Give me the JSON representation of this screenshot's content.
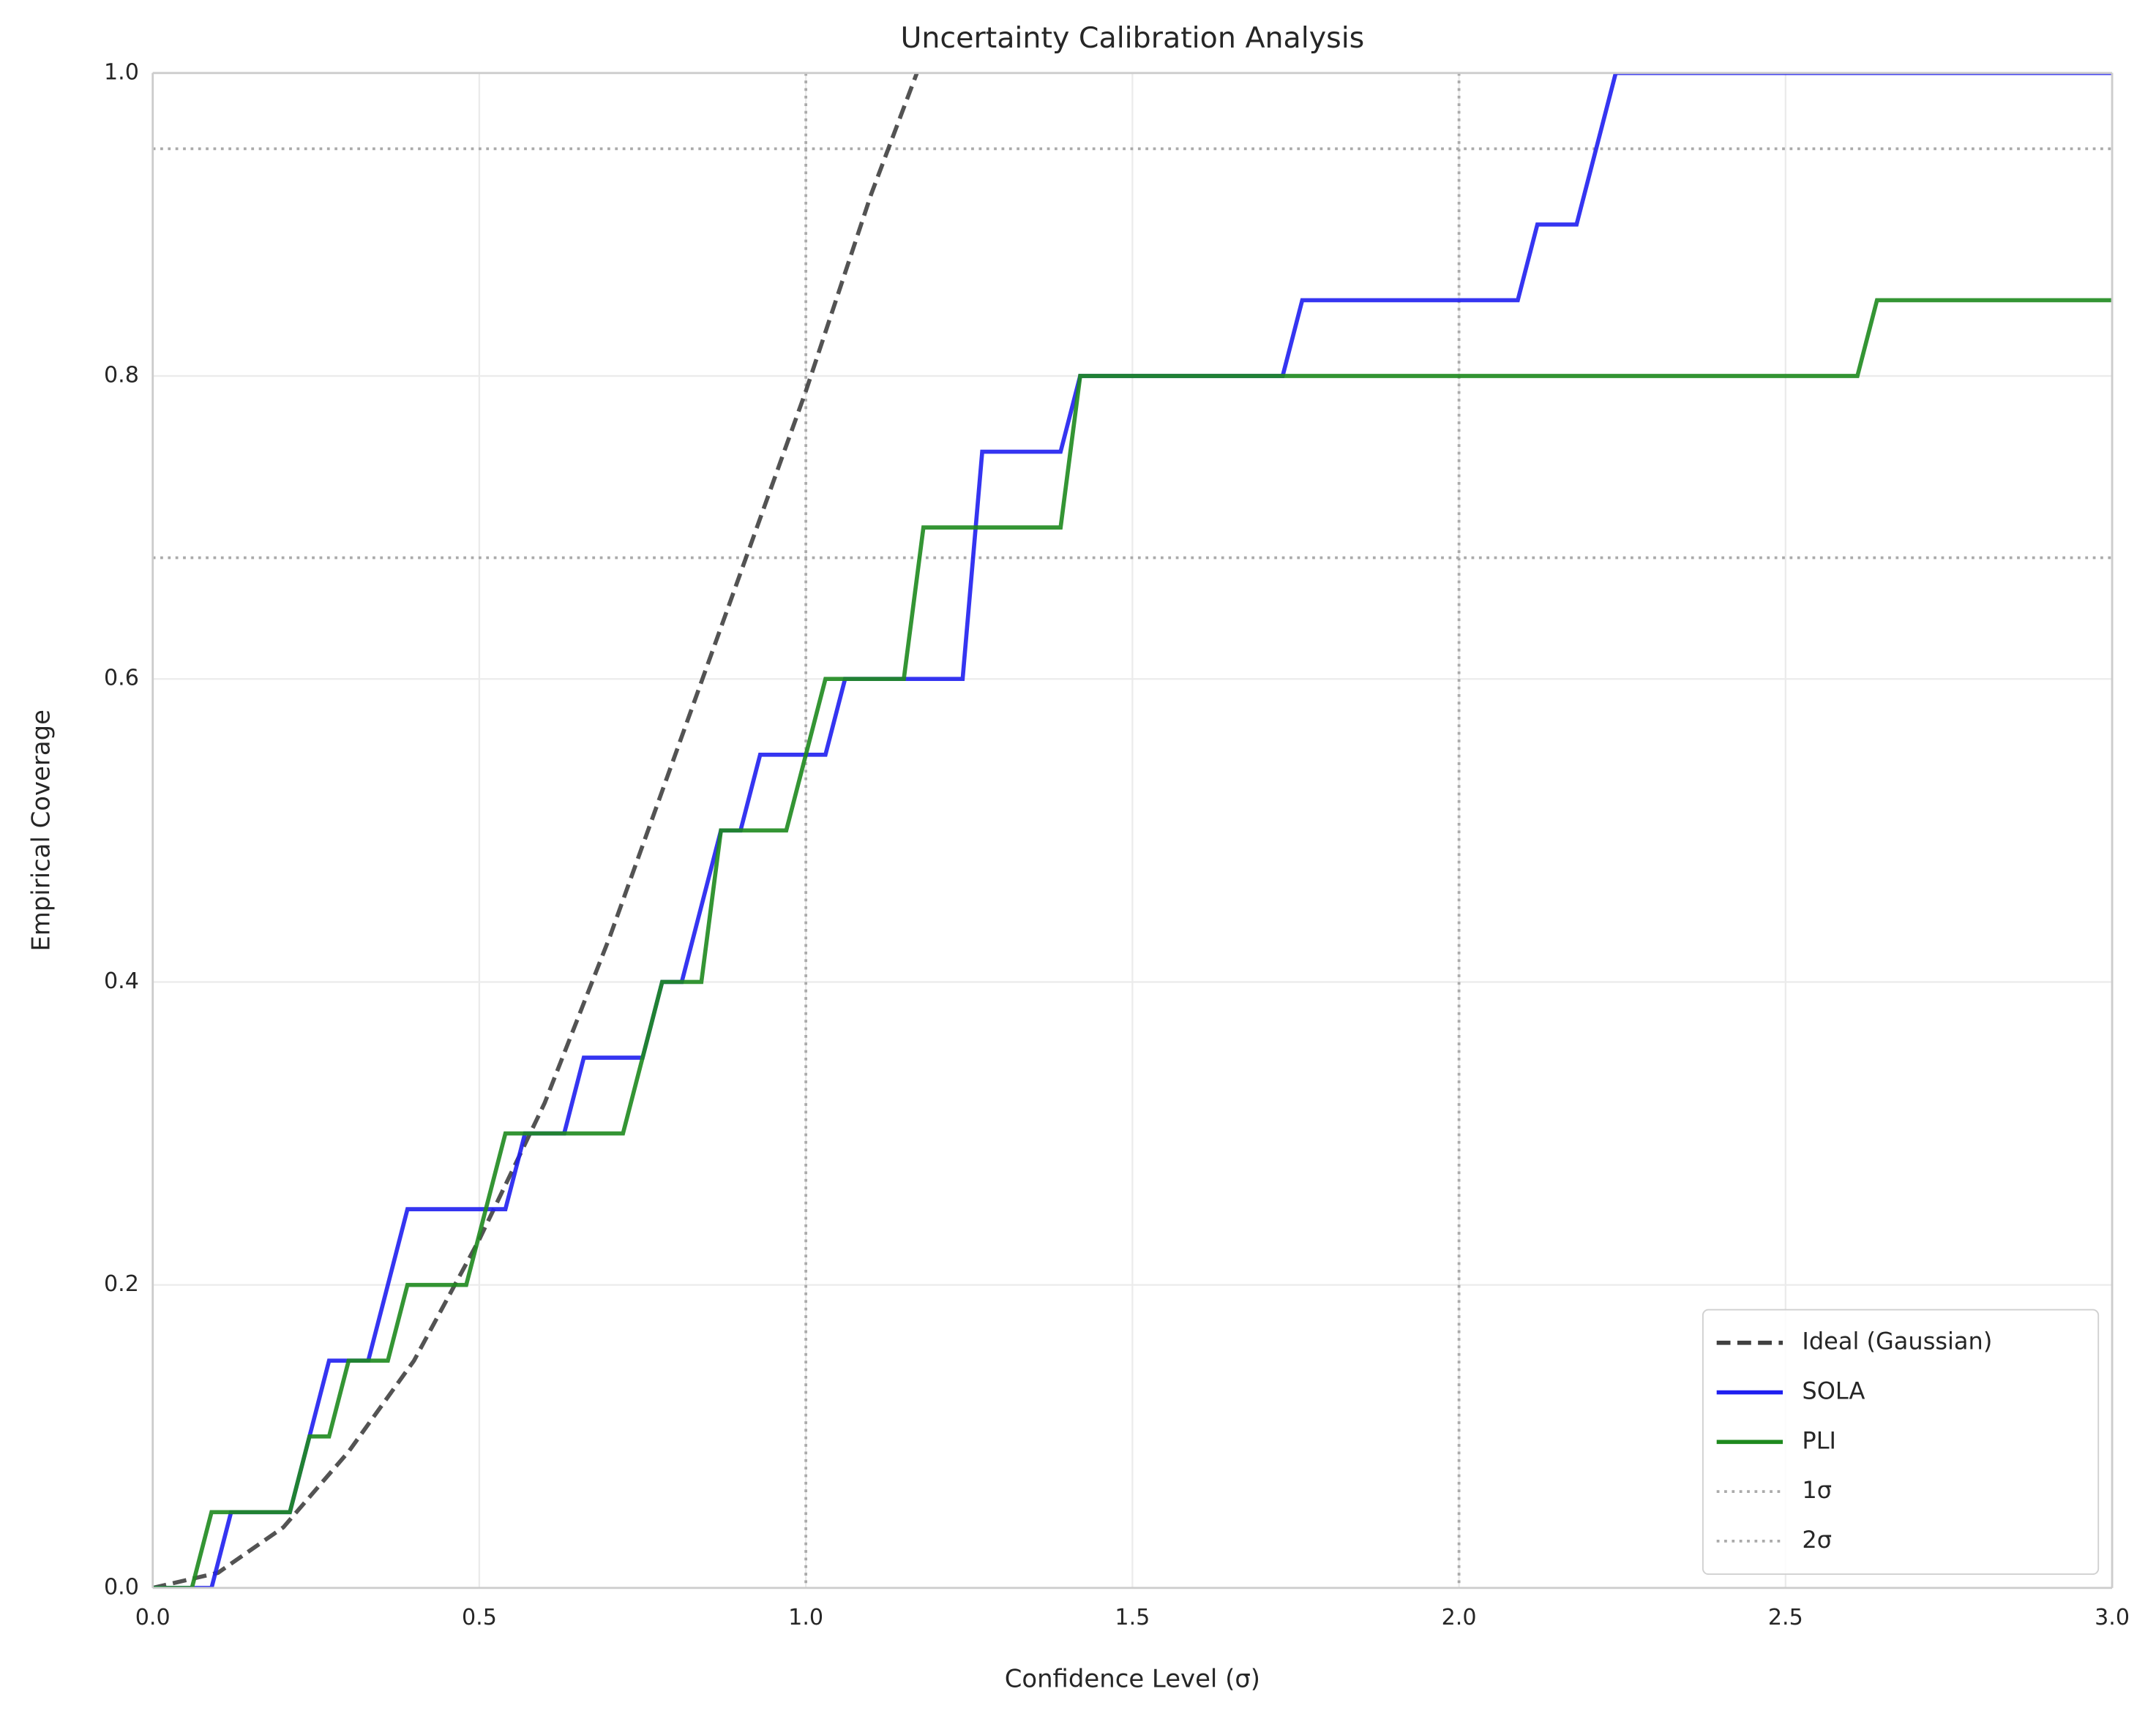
{
  "chart_data": {
    "type": "line",
    "title": "Uncertainty Calibration Analysis",
    "x_label": "Confidence Level (σ)",
    "y_label": "Empirical Coverage",
    "xlim": [
      0,
      3
    ],
    "ylim": [
      0,
      1
    ],
    "xticks": [
      {
        "value": 0,
        "label": "0.0"
      },
      0.5,
      {
        "value": 1,
        "label": "1.0"
      },
      1.5,
      {
        "value": 2,
        "label": "2.0"
      },
      2.5,
      {
        "value": 3,
        "label": "3.0"
      }
    ],
    "yticks": [
      {
        "value": 0,
        "label": "0.0"
      },
      0.2,
      0.4,
      0.6,
      0.8,
      {
        "value": 1,
        "label": "1.0"
      }
    ],
    "grid": true,
    "legend": "lower right",
    "series": [
      {
        "name": "Ideal (Gaussian)",
        "color": "#404040",
        "style": "dashed",
        "x": [
          0,
          0.1,
          0.2,
          0.3,
          0.4,
          0.5,
          0.6,
          0.7,
          0.8,
          0.9,
          1.0,
          1.1,
          1.17
        ],
        "values": [
          0,
          0.01,
          0.04,
          0.09,
          0.15,
          0.23,
          0.32,
          0.43,
          0.55,
          0.67,
          0.79,
          0.92,
          1.0
        ]
      },
      {
        "name": "SOLA",
        "color": "#1f1ff0",
        "style": "solid",
        "x": [
          0,
          0.09,
          0.12,
          0.21,
          0.24,
          0.27,
          0.33,
          0.39,
          0.54,
          0.57,
          0.63,
          0.66,
          0.75,
          0.78,
          0.81,
          0.87,
          0.9,
          0.93,
          1.03,
          1.06,
          1.24,
          1.27,
          1.39,
          1.42,
          1.73,
          1.76,
          2.09,
          2.12,
          2.18,
          2.24,
          3.0
        ],
        "values": [
          0,
          0,
          0.05,
          0.05,
          0.1,
          0.15,
          0.15,
          0.25,
          0.25,
          0.3,
          0.3,
          0.35,
          0.35,
          0.4,
          0.4,
          0.5,
          0.5,
          0.55,
          0.55,
          0.6,
          0.6,
          0.75,
          0.75,
          0.8,
          0.8,
          0.85,
          0.85,
          0.9,
          0.9,
          1.0,
          1.0
        ]
      },
      {
        "name": "PLI",
        "color": "#1e8a1e",
        "style": "solid",
        "x": [
          0,
          0.06,
          0.09,
          0.21,
          0.24,
          0.27,
          0.3,
          0.36,
          0.39,
          0.48,
          0.54,
          0.72,
          0.78,
          0.84,
          0.87,
          0.97,
          1.03,
          1.15,
          1.18,
          1.39,
          1.42,
          2.61,
          2.64,
          3.0
        ],
        "values": [
          0,
          0,
          0.05,
          0.05,
          0.1,
          0.1,
          0.15,
          0.15,
          0.2,
          0.2,
          0.3,
          0.3,
          0.4,
          0.4,
          0.5,
          0.5,
          0.6,
          0.6,
          0.7,
          0.7,
          0.8,
          0.8,
          0.85,
          0.85
        ]
      }
    ],
    "reference_lines": [
      {
        "name": "1σ",
        "color": "#aaaaaa",
        "x": 1,
        "y": 0.68
      },
      {
        "name": "2σ",
        "color": "#aaaaaa",
        "x": 2,
        "y": 0.95
      }
    ]
  }
}
